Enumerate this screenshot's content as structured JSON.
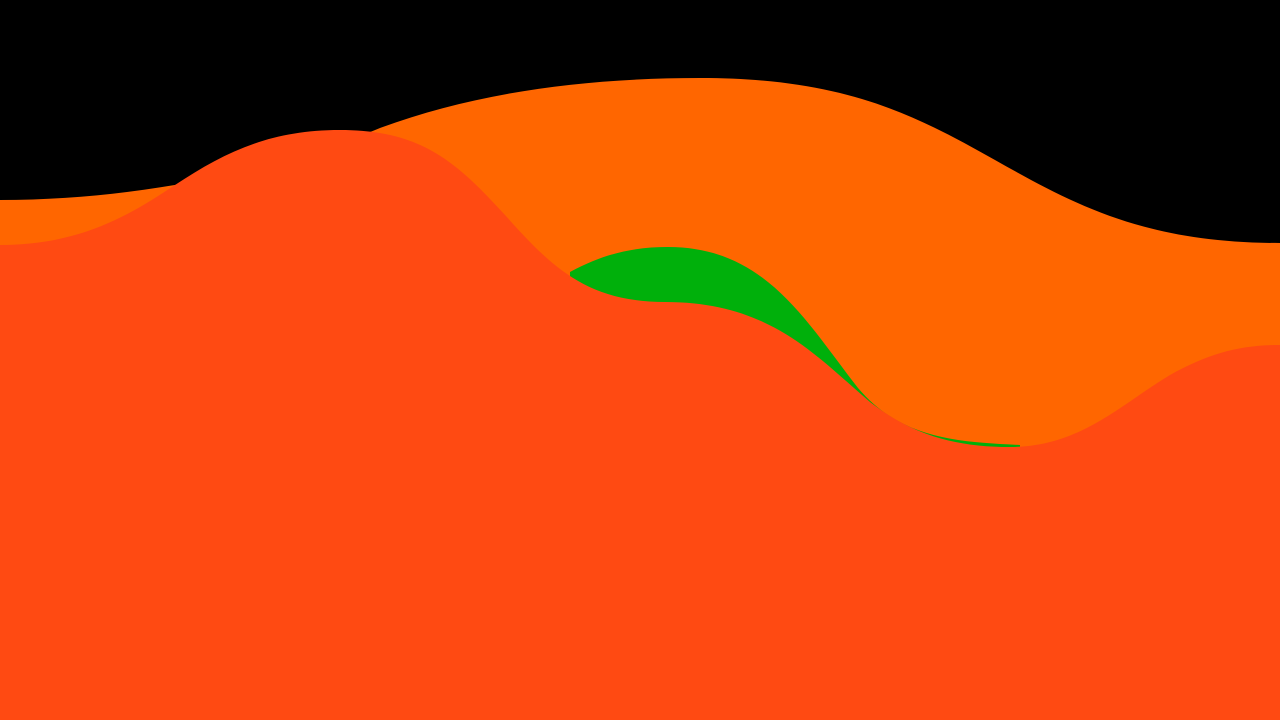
{
  "scene": {
    "background_color": "#000000",
    "layers": [
      {
        "name": "back-orange-wave",
        "color": "#FF6600"
      },
      {
        "name": "green-wave",
        "color": "#00B00B"
      },
      {
        "name": "front-red-orange-wave",
        "color": "#FF4A12"
      }
    ]
  }
}
